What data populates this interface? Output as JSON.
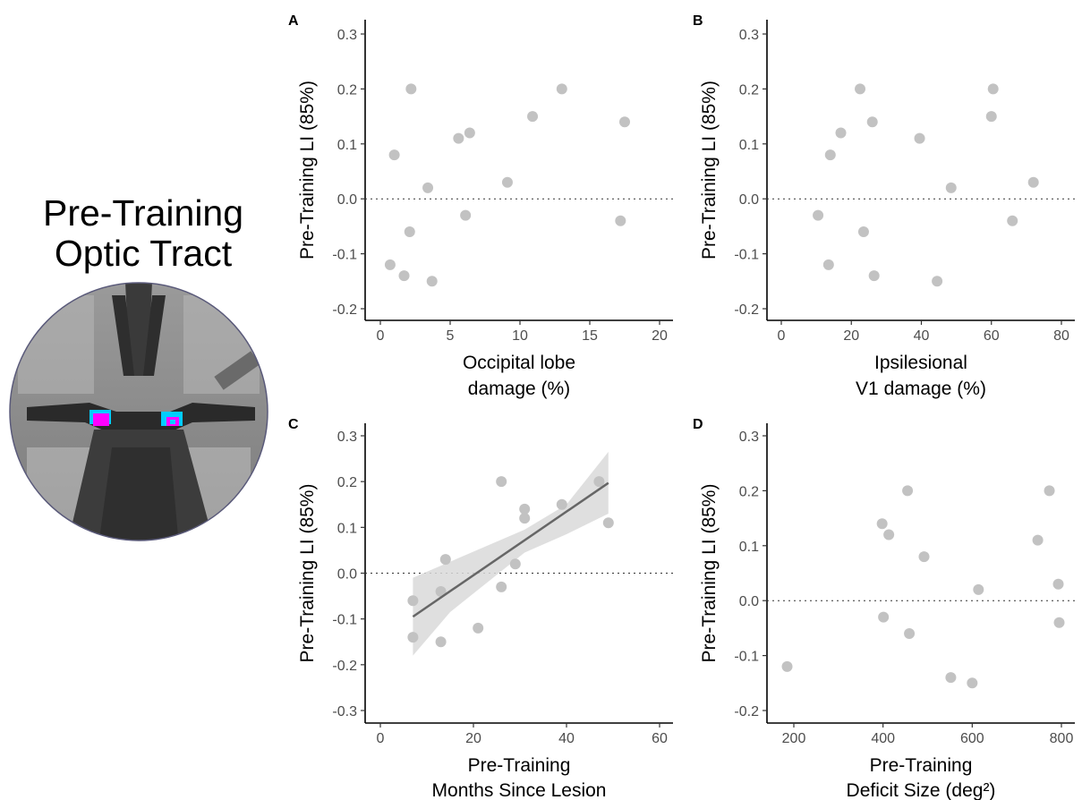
{
  "figure_title": {
    "line1": "Pre-Training",
    "line2": "Optic Tract"
  },
  "brain_image": {
    "colors": {
      "roi_cyan": "#00ccff",
      "roi_magenta": "#ff00ff"
    }
  },
  "colors": {
    "points": "#c2c2c2",
    "fit_line": "#666666",
    "ci_band": "#d9d9d9"
  },
  "chart_data": [
    {
      "panel": "A",
      "type": "scatter",
      "xlabel": [
        "Occipital lobe",
        "damage (%)"
      ],
      "ylabel": "Pre-Training LI (85%)",
      "xlim": [
        0,
        20
      ],
      "ylim": [
        -0.2,
        0.3
      ],
      "xticks": [
        0,
        5,
        10,
        15,
        20
      ],
      "yticks": [
        -0.2,
        -0.1,
        0.0,
        0.1,
        0.2,
        0.3
      ],
      "ytick_labels": [
        "-0.2",
        "-0.1",
        "0.0",
        "0.1",
        "0.2",
        "0.3"
      ],
      "reference_line_y": 0,
      "points": [
        {
          "x": 2.2,
          "y": 0.2
        },
        {
          "x": 13.0,
          "y": 0.2
        },
        {
          "x": 10.9,
          "y": 0.15
        },
        {
          "x": 17.5,
          "y": 0.14
        },
        {
          "x": 6.4,
          "y": 0.12
        },
        {
          "x": 5.6,
          "y": 0.11
        },
        {
          "x": 1.0,
          "y": 0.08
        },
        {
          "x": 9.1,
          "y": 0.03
        },
        {
          "x": 3.4,
          "y": 0.02
        },
        {
          "x": 6.1,
          "y": -0.03
        },
        {
          "x": 17.2,
          "y": -0.04
        },
        {
          "x": 2.1,
          "y": -0.06
        },
        {
          "x": 0.7,
          "y": -0.12
        },
        {
          "x": 1.7,
          "y": -0.14
        },
        {
          "x": 3.7,
          "y": -0.15
        }
      ]
    },
    {
      "panel": "B",
      "type": "scatter",
      "xlabel": [
        "Ipsilesional",
        "V1 damage (%)"
      ],
      "ylabel": "Pre-Training LI (85%)",
      "xlim": [
        0,
        80
      ],
      "ylim": [
        -0.2,
        0.3
      ],
      "xticks": [
        0,
        20,
        40,
        60,
        80
      ],
      "yticks": [
        -0.2,
        -0.1,
        0.0,
        0.1,
        0.2,
        0.3
      ],
      "ytick_labels": [
        "-0.2",
        "-0.1",
        "0.0",
        "0.1",
        "0.2",
        "0.3"
      ],
      "reference_line_y": 0,
      "points": [
        {
          "x": 22.5,
          "y": 0.2
        },
        {
          "x": 60.5,
          "y": 0.2
        },
        {
          "x": 60.0,
          "y": 0.15
        },
        {
          "x": 26.0,
          "y": 0.14
        },
        {
          "x": 17.0,
          "y": 0.12
        },
        {
          "x": 39.5,
          "y": 0.11
        },
        {
          "x": 14.0,
          "y": 0.08
        },
        {
          "x": 72.0,
          "y": 0.03
        },
        {
          "x": 48.5,
          "y": 0.02
        },
        {
          "x": 10.5,
          "y": -0.03
        },
        {
          "x": 66.0,
          "y": -0.04
        },
        {
          "x": 23.5,
          "y": -0.06
        },
        {
          "x": 13.5,
          "y": -0.12
        },
        {
          "x": 26.5,
          "y": -0.14
        },
        {
          "x": 44.5,
          "y": -0.15
        }
      ]
    },
    {
      "panel": "C",
      "type": "scatter",
      "xlabel": [
        "Pre-Training",
        "Months Since Lesion"
      ],
      "ylabel": "Pre-Training LI (85%)",
      "xlim": [
        0,
        60
      ],
      "ylim": [
        -0.3,
        0.3
      ],
      "xticks": [
        0,
        20,
        40,
        60
      ],
      "yticks": [
        -0.3,
        -0.2,
        -0.1,
        0.0,
        0.1,
        0.2,
        0.3
      ],
      "ytick_labels": [
        "-0.3",
        "-0.2",
        "-0.1",
        "0.0",
        "0.1",
        "0.2",
        "0.3"
      ],
      "reference_line_y": 0,
      "points": [
        {
          "x": 26.0,
          "y": 0.2
        },
        {
          "x": 47.0,
          "y": 0.2
        },
        {
          "x": 39.0,
          "y": 0.15
        },
        {
          "x": 31.0,
          "y": 0.14
        },
        {
          "x": 31.0,
          "y": 0.12
        },
        {
          "x": 49.0,
          "y": 0.11
        },
        {
          "x": 14.0,
          "y": 0.03
        },
        {
          "x": 29.0,
          "y": 0.02
        },
        {
          "x": 26.0,
          "y": -0.03
        },
        {
          "x": 13.0,
          "y": -0.04
        },
        {
          "x": 7.0,
          "y": -0.06
        },
        {
          "x": 21.0,
          "y": -0.12
        },
        {
          "x": 7.0,
          "y": -0.14
        },
        {
          "x": 13.0,
          "y": -0.15
        }
      ],
      "fit": {
        "line": [
          {
            "x": 7,
            "y": -0.095
          },
          {
            "x": 49,
            "y": 0.197
          }
        ],
        "ci_upper": [
          {
            "x": 7,
            "y": -0.01
          },
          {
            "x": 15,
            "y": 0.025
          },
          {
            "x": 23,
            "y": 0.06
          },
          {
            "x": 31,
            "y": 0.095
          },
          {
            "x": 40,
            "y": 0.15
          },
          {
            "x": 49,
            "y": 0.265
          }
        ],
        "ci_lower": [
          {
            "x": 7,
            "y": -0.18
          },
          {
            "x": 15,
            "y": -0.085
          },
          {
            "x": 23,
            "y": -0.02
          },
          {
            "x": 31,
            "y": 0.045
          },
          {
            "x": 40,
            "y": 0.085
          },
          {
            "x": 49,
            "y": 0.13
          }
        ]
      }
    },
    {
      "panel": "D",
      "type": "scatter",
      "xlabel": [
        "Pre-Training",
        "Deficit Size (deg²)"
      ],
      "ylabel": "Pre-Training LI (85%)",
      "xlim": [
        200,
        800
      ],
      "ylim": [
        -0.2,
        0.3
      ],
      "xticks": [
        200,
        400,
        600,
        800
      ],
      "yticks": [
        -0.2,
        -0.1,
        0.0,
        0.1,
        0.2,
        0.3
      ],
      "ytick_labels": [
        "-0.2",
        "-0.1",
        "0.0",
        "0.1",
        "0.2",
        "0.3"
      ],
      "reference_line_y": 0,
      "points": [
        {
          "x": 455,
          "y": 0.2
        },
        {
          "x": 773,
          "y": 0.2
        },
        {
          "x": 398,
          "y": 0.14
        },
        {
          "x": 413,
          "y": 0.12
        },
        {
          "x": 747,
          "y": 0.11
        },
        {
          "x": 492,
          "y": 0.08
        },
        {
          "x": 793,
          "y": 0.03
        },
        {
          "x": 614,
          "y": 0.02
        },
        {
          "x": 401,
          "y": -0.03
        },
        {
          "x": 795,
          "y": -0.04
        },
        {
          "x": 459,
          "y": -0.06
        },
        {
          "x": 185,
          "y": -0.12
        },
        {
          "x": 552,
          "y": -0.14
        },
        {
          "x": 600,
          "y": -0.15
        }
      ]
    }
  ]
}
